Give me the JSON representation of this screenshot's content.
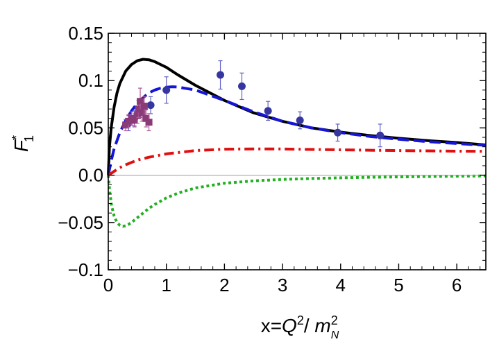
{
  "chart_data": {
    "type": "line",
    "title": "",
    "xlabel": "x=Q²/m_N²",
    "ylabel": "F₁*",
    "xlim": [
      0,
      6.5
    ],
    "ylim": [
      -0.1,
      0.15
    ],
    "xticks": [
      0,
      1,
      2,
      3,
      4,
      5,
      6
    ],
    "xtick_labels": [
      "0",
      "1",
      "2",
      "3",
      "4",
      "5",
      "6"
    ],
    "yticks": [
      -0.1,
      -0.05,
      0.0,
      0.05,
      0.1,
      0.15
    ],
    "ytick_labels": [
      "−0.1",
      "−0.05",
      "0.0",
      "0.05",
      "0.1",
      "0.15"
    ],
    "grid": false,
    "legend": "none",
    "series": [
      {
        "style": "solid",
        "color": "#000000",
        "x": [
          0,
          0.02,
          0.05,
          0.1,
          0.15,
          0.2,
          0.3,
          0.4,
          0.5,
          0.6,
          0.7,
          0.8,
          0.9,
          1.0,
          1.2,
          1.5,
          2.0,
          2.5,
          3.0,
          3.5,
          4.0,
          4.5,
          5.0,
          5.5,
          6.0,
          6.5
        ],
        "y": [
          0,
          0.03,
          0.05,
          0.072,
          0.087,
          0.097,
          0.11,
          0.117,
          0.121,
          0.1225,
          0.122,
          0.12,
          0.117,
          0.114,
          0.106,
          0.095,
          0.079,
          0.066,
          0.057,
          0.05,
          0.0455,
          0.042,
          0.039,
          0.0365,
          0.0345,
          0.032
        ]
      },
      {
        "style": "dashed",
        "color": "#1515d8",
        "x": [
          0,
          0.05,
          0.1,
          0.2,
          0.3,
          0.4,
          0.5,
          0.6,
          0.7,
          0.8,
          0.9,
          1.0,
          1.1,
          1.2,
          1.5,
          2.0,
          2.5,
          3.0,
          3.5,
          4.0,
          4.5,
          5.0,
          5.5,
          6.0,
          6.5
        ],
        "y": [
          0,
          0.015,
          0.028,
          0.045,
          0.058,
          0.068,
          0.076,
          0.082,
          0.087,
          0.09,
          0.092,
          0.093,
          0.0935,
          0.0932,
          0.09,
          0.079,
          0.067,
          0.057,
          0.05,
          0.045,
          0.041,
          0.038,
          0.0355,
          0.0335,
          0.0315
        ]
      },
      {
        "style": "dashdot",
        "color": "#e01010",
        "x": [
          0,
          0.05,
          0.1,
          0.2,
          0.3,
          0.5,
          0.7,
          1.0,
          1.5,
          2.0,
          2.5,
          3.0,
          3.5,
          4.0,
          4.5,
          5.0,
          5.5,
          6.0,
          6.5
        ],
        "y": [
          0,
          0.002,
          0.004,
          0.008,
          0.011,
          0.016,
          0.019,
          0.0225,
          0.026,
          0.0275,
          0.0278,
          0.0277,
          0.0272,
          0.0268,
          0.0264,
          0.026,
          0.0257,
          0.0254,
          0.0252
        ]
      },
      {
        "style": "dotted",
        "color": "#22b022",
        "x": [
          0,
          0.03,
          0.06,
          0.1,
          0.15,
          0.2,
          0.25,
          0.3,
          0.35,
          0.4,
          0.5,
          0.6,
          0.7,
          0.8,
          1.0,
          1.2,
          1.5,
          2.0,
          2.5,
          3.0,
          3.5,
          4.0,
          4.5,
          5.0,
          5.5,
          6.0,
          6.5
        ],
        "y": [
          0,
          -0.02,
          -0.033,
          -0.043,
          -0.05,
          -0.053,
          -0.054,
          -0.0535,
          -0.052,
          -0.05,
          -0.045,
          -0.04,
          -0.035,
          -0.031,
          -0.024,
          -0.019,
          -0.0135,
          -0.0085,
          -0.006,
          -0.0045,
          -0.0035,
          -0.0028,
          -0.0022,
          -0.0018,
          -0.0014,
          -0.001,
          -0.0008
        ]
      }
    ],
    "points": [
      {
        "marker": "circle",
        "color": "#3636a0",
        "error_color": "#6060c8",
        "x": [
          0.35,
          0.45,
          0.55,
          0.73,
          1.0,
          1.93,
          2.3,
          2.75,
          3.3,
          3.95,
          4.68
        ],
        "y": [
          0.055,
          0.06,
          0.07,
          0.074,
          0.09,
          0.106,
          0.094,
          0.068,
          0.058,
          0.045,
          0.042
        ],
        "err": [
          0.008,
          0.008,
          0.009,
          0.009,
          0.014,
          0.015,
          0.014,
          0.01,
          0.009,
          0.009,
          0.012
        ]
      },
      {
        "marker": "square",
        "color": "#8b3a78",
        "error_color": "#b05a9a",
        "x": [
          0.3,
          0.35,
          0.4,
          0.45,
          0.5,
          0.52,
          0.55,
          0.58,
          0.62,
          0.65,
          0.7
        ],
        "y": [
          0.053,
          0.057,
          0.06,
          0.058,
          0.063,
          0.07,
          0.078,
          0.066,
          0.073,
          0.06,
          0.056
        ],
        "err": [
          0.006,
          0.007,
          0.007,
          0.007,
          0.008,
          0.009,
          0.014,
          0.009,
          0.01,
          0.009,
          0.009
        ]
      }
    ]
  }
}
